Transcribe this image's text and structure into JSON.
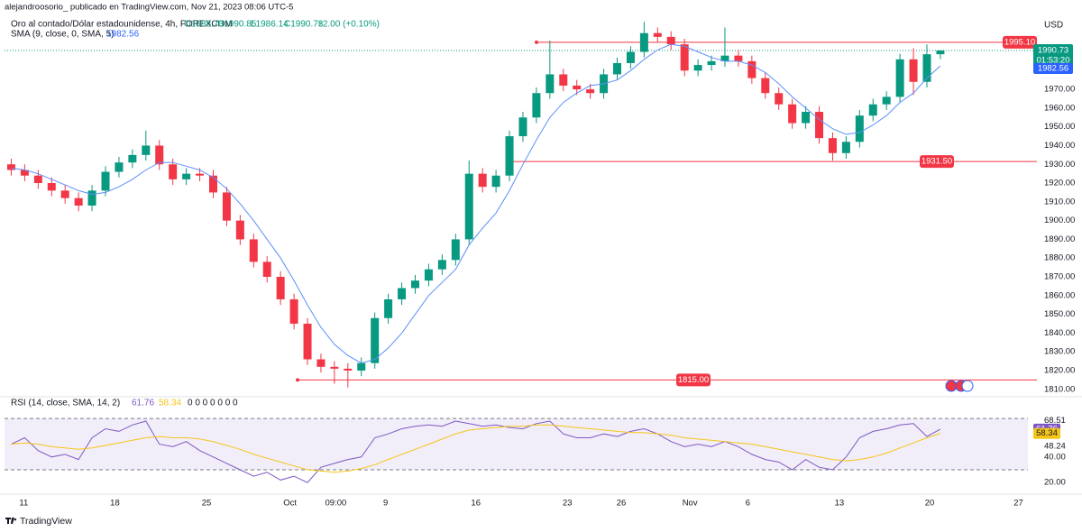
{
  "header": {
    "publisher": "alejandroosorio_ publicado en TradingView.com, Nov 21, 2023 08:06 UTC-5",
    "symbol": "Oro al contado/Dólar estadounidense, 4h, FOREXCOM",
    "ohlc": [
      "O1988.73",
      "H1990.85",
      "L1986.14",
      "C1990.73"
    ],
    "change": "+2.00 (+0.10%)",
    "brand": "TradingView"
  },
  "chart_data": [
    {
      "type": "candlestick",
      "currency": "USD",
      "up_color": "#089981",
      "down_color": "#f23645",
      "open": [
        1930,
        1927,
        1924,
        1920,
        1916,
        1912,
        1908,
        1916,
        1926,
        1931,
        1935,
        1940,
        1930,
        1922,
        1925,
        1924,
        1915,
        1900,
        1890,
        1878,
        1870,
        1858,
        1845,
        1826,
        1822,
        1821,
        1820,
        1824,
        1848,
        1858,
        1864,
        1868,
        1874,
        1879,
        1890,
        1925,
        1918,
        1924,
        1945,
        1955,
        1968,
        1978,
        1972,
        1970,
        1968,
        1978,
        1984,
        1990,
        2000,
        1998,
        1994,
        1980,
        1983,
        1985,
        1988,
        1985,
        1976,
        1968,
        1962,
        1952,
        1958,
        1944,
        1936,
        1942,
        1956,
        1962,
        1966,
        1986,
        1974,
        1988.73
      ],
      "high": [
        1933,
        1930,
        1927,
        1923,
        1919,
        1915,
        1919,
        1929,
        1934,
        1938,
        1948,
        1943,
        1933,
        1928,
        1928,
        1927,
        1918,
        1903,
        1893,
        1881,
        1873,
        1861,
        1848,
        1829,
        1825,
        1824,
        1827,
        1851,
        1861,
        1867,
        1871,
        1877,
        1882,
        1893,
        1932,
        1928,
        1927,
        1948,
        1958,
        1971,
        1996,
        1981,
        1975,
        1973,
        1981,
        1987,
        1993,
        2006,
        2003,
        2001,
        1997,
        1986,
        1988,
        2003,
        1991,
        1988,
        1979,
        1971,
        1965,
        1961,
        1961,
        1947,
        1945,
        1959,
        1965,
        1969,
        1989,
        1992,
        1994,
        1990.85
      ],
      "low": [
        1924,
        1921,
        1917,
        1913,
        1909,
        1905,
        1905,
        1913,
        1923,
        1928,
        1932,
        1927,
        1919,
        1919,
        1921,
        1912,
        1897,
        1887,
        1875,
        1867,
        1855,
        1842,
        1823,
        1819,
        1813,
        1811,
        1817,
        1821,
        1845,
        1855,
        1861,
        1865,
        1871,
        1876,
        1887,
        1915,
        1915,
        1921,
        1942,
        1952,
        1965,
        1969,
        1967,
        1965,
        1965,
        1975,
        1981,
        1987,
        1995,
        1991,
        1977,
        1977,
        1980,
        1982,
        1982,
        1973,
        1965,
        1959,
        1949,
        1949,
        1941,
        1932,
        1933,
        1939,
        1953,
        1959,
        1963,
        1967,
        1971,
        1986.14
      ],
      "close": [
        1927,
        1924,
        1920,
        1916,
        1912,
        1908,
        1916,
        1926,
        1931,
        1935,
        1940,
        1930,
        1922,
        1925,
        1924,
        1915,
        1900,
        1890,
        1878,
        1870,
        1858,
        1845,
        1826,
        1822,
        1821,
        1820,
        1824,
        1848,
        1858,
        1864,
        1868,
        1874,
        1879,
        1890,
        1925,
        1918,
        1924,
        1945,
        1955,
        1968,
        1978,
        1972,
        1970,
        1968,
        1978,
        1984,
        1990,
        2000,
        1998,
        1994,
        1980,
        1983,
        1985,
        1988,
        1985,
        1976,
        1968,
        1962,
        1952,
        1958,
        1944,
        1936,
        1942,
        1956,
        1962,
        1966,
        1986,
        1974,
        1988.73,
        1990.73
      ],
      "sma": {
        "name": "SMA (9, close, 0, SMA, 5)",
        "color": "#5b8ff9",
        "value_label": "1982.56",
        "values": [
          1928,
          1927,
          1925,
          1922,
          1919,
          1916,
          1914,
          1915,
          1918,
          1922,
          1927,
          1931,
          1931,
          1929,
          1927,
          1923,
          1917,
          1909,
          1900,
          1890,
          1880,
          1868,
          1855,
          1843,
          1834,
          1828,
          1824,
          1826,
          1832,
          1840,
          1850,
          1860,
          1867,
          1874,
          1887,
          1896,
          1904,
          1916,
          1930,
          1943,
          1955,
          1963,
          1968,
          1972,
          1973,
          1975,
          1980,
          1986,
          1991,
          1994,
          1993,
          1990,
          1987,
          1985,
          1985,
          1983,
          1979,
          1973,
          1966,
          1960,
          1954,
          1949,
          1946,
          1947,
          1951,
          1956,
          1963,
          1968,
          1976,
          1982.56
        ]
      },
      "last_price": 1990.73,
      "countdown": "01:53:20",
      "levels": [
        1995.1,
        1931.5,
        1815
      ],
      "level_labels": [
        "1995.10",
        "1931.50",
        "1815.00"
      ],
      "level_color": "#f23645",
      "xlim": [
        -0.5,
        75.5
      ],
      "xticks": [
        {
          "value": 0.93,
          "label": "11"
        },
        {
          "value": 7.7,
          "label": "18"
        },
        {
          "value": 14.5,
          "label": "25"
        },
        {
          "value": 20.7,
          "label": "Oct"
        },
        {
          "value": 24.1,
          "label": "09:00"
        },
        {
          "value": 27.8,
          "label": "9"
        },
        {
          "value": 34.5,
          "label": "16"
        },
        {
          "value": 41.3,
          "label": "23"
        },
        {
          "value": 45.3,
          "label": "26"
        },
        {
          "value": 50.4,
          "label": "Nov"
        },
        {
          "value": 54.7,
          "label": "6"
        },
        {
          "value": 61.5,
          "label": "13"
        },
        {
          "value": 68.2,
          "label": "20"
        },
        {
          "value": 74.8,
          "label": "27"
        }
      ],
      "ylim": [
        1807,
        2009
      ],
      "yticks": [
        {
          "value": 1810,
          "label": "1810.00"
        },
        {
          "value": 1820,
          "label": "1820.00"
        },
        {
          "value": 1830,
          "label": "1830.00"
        },
        {
          "value": 1840,
          "label": "1840.00"
        },
        {
          "value": 1850,
          "label": "1850.00"
        },
        {
          "value": 1860,
          "label": "1860.00"
        },
        {
          "value": 1870,
          "label": "1870.00"
        },
        {
          "value": 1880,
          "label": "1880.00"
        },
        {
          "value": 1890,
          "label": "1890.00"
        },
        {
          "value": 1900,
          "label": "1900.00"
        },
        {
          "value": 1910,
          "label": "1910.00"
        },
        {
          "value": 1920,
          "label": "1920.00"
        },
        {
          "value": 1930,
          "label": "1930.00"
        },
        {
          "value": 1940,
          "label": "1940.00"
        },
        {
          "value": 1950,
          "label": "1950.00"
        },
        {
          "value": 1960,
          "label": "1960.00"
        },
        {
          "value": 1970,
          "label": "1970.00"
        }
      ]
    },
    {
      "type": "line",
      "title": "RSI (14, close, SMA, 14, 2)",
      "extra": "0 0 0 0 0 0 0",
      "ylim": [
        11,
        87
      ],
      "bands": [
        30,
        70
      ],
      "yticks": [
        68.51,
        48.24,
        {
          "value": 40,
          "label": "40.00"
        },
        {
          "value": 20,
          "label": "20.00"
        }
      ],
      "series": [
        {
          "color": "#7e57c2",
          "value_label": "61.76",
          "values": [
            50,
            55,
            45,
            40,
            42,
            38,
            55,
            62,
            60,
            65,
            68,
            50,
            48,
            52,
            45,
            40,
            35,
            30,
            25,
            28,
            22,
            25,
            20,
            32,
            35,
            38,
            40,
            55,
            58,
            62,
            64,
            65,
            64,
            68,
            66,
            64,
            65,
            63,
            62,
            66,
            68,
            58,
            55,
            55,
            58,
            56,
            60,
            62,
            58,
            52,
            48,
            50,
            48,
            52,
            48,
            42,
            38,
            36,
            30,
            38,
            32,
            30,
            40,
            55,
            60,
            62,
            65,
            66,
            56,
            61.76
          ]
        },
        {
          "color": "#f5c518",
          "value_label": "58.34",
          "values": [
            50,
            51,
            50,
            48,
            47,
            46,
            47,
            49,
            51,
            53,
            55,
            56,
            55,
            55,
            54,
            52,
            49,
            46,
            42,
            39,
            36,
            33,
            30,
            29,
            28,
            29,
            31,
            34,
            38,
            42,
            46,
            50,
            54,
            58,
            61,
            62,
            63,
            64,
            64,
            65,
            65,
            64,
            63,
            62,
            61,
            60,
            59,
            59,
            58,
            57,
            55,
            54,
            53,
            52,
            51,
            50,
            48,
            46,
            44,
            42,
            40,
            38,
            37,
            38,
            40,
            43,
            47,
            51,
            55,
            58.34
          ]
        }
      ]
    }
  ]
}
